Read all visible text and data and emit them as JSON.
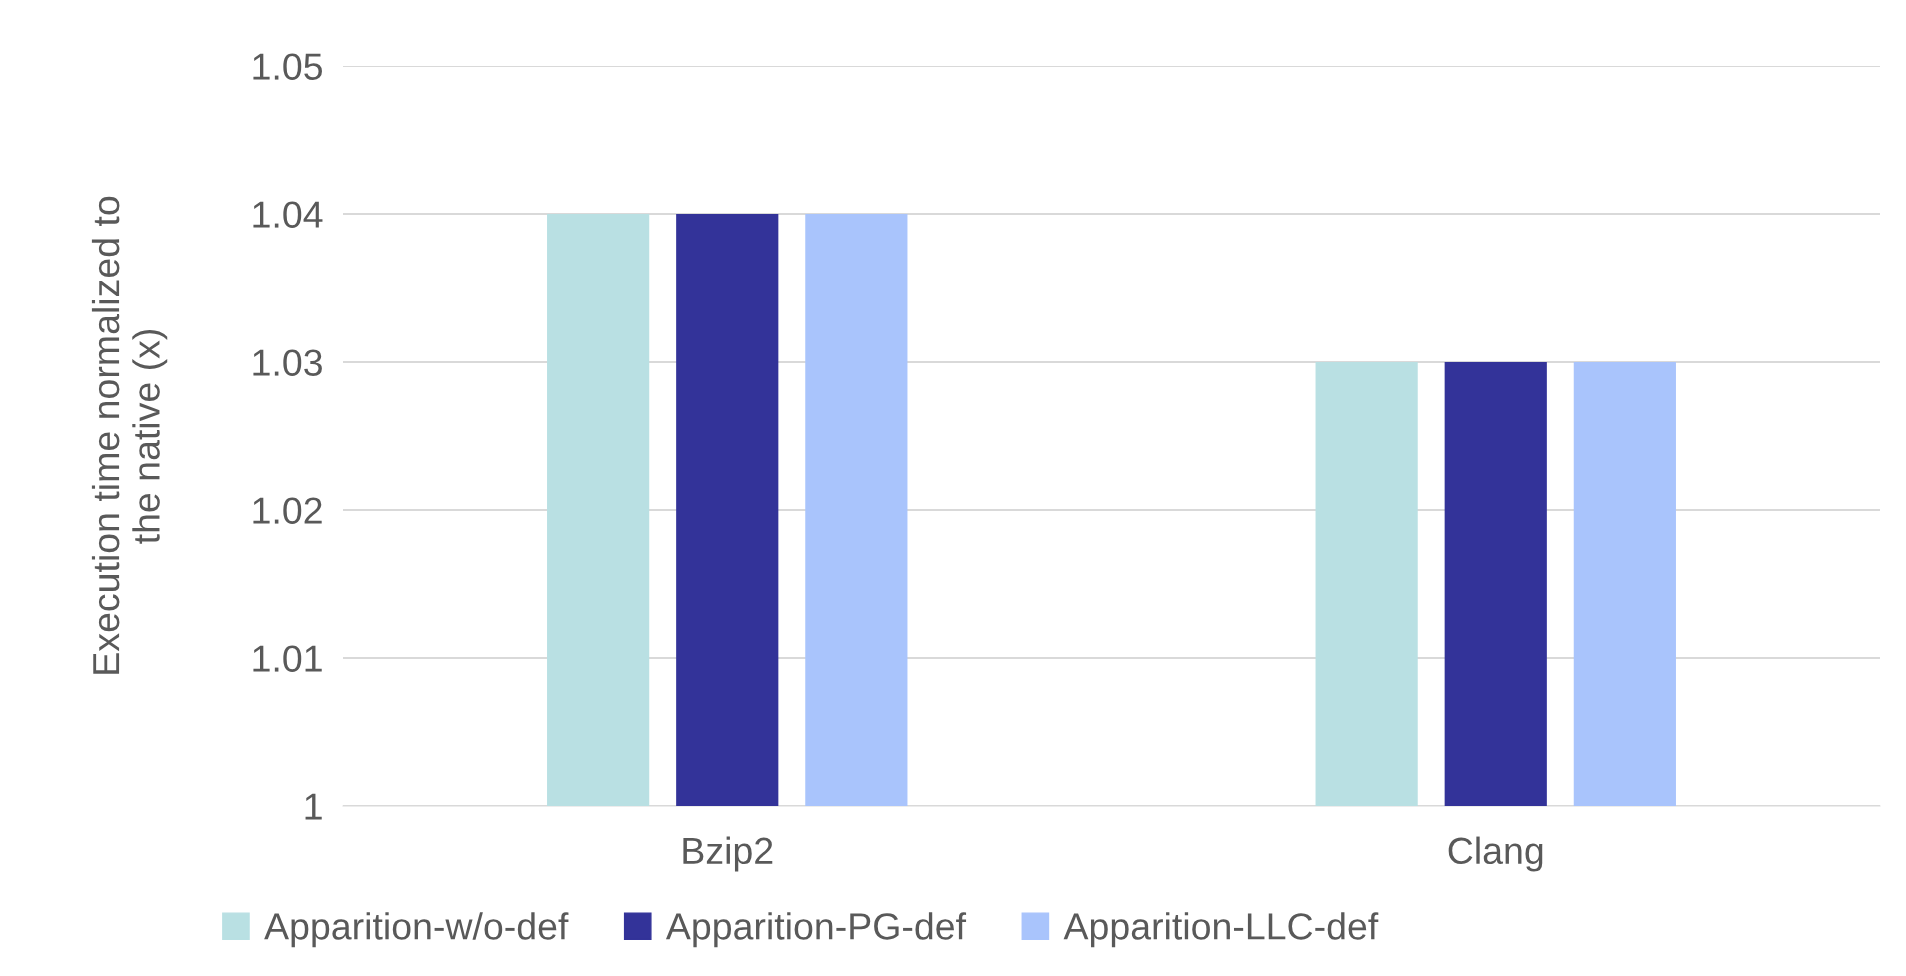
{
  "chart_data": {
    "type": "bar",
    "ylabel": "Execution time normalized to\nthe native (x)",
    "categories": [
      "Bzip2",
      "Clang"
    ],
    "series": [
      {
        "name": "Apparition-w/o-def",
        "color": "#b9e0e3",
        "values": [
          1.04,
          1.03
        ]
      },
      {
        "name": "Apparition-PG-def",
        "color": "#333399",
        "values": [
          1.04,
          1.03
        ]
      },
      {
        "name": "Apparition-LLC-def",
        "color": "#a9c4fc",
        "values": [
          1.04,
          1.03
        ]
      }
    ],
    "ylim": [
      1,
      1.05
    ],
    "yticks": [
      {
        "value": 1,
        "label": "1"
      },
      1.01,
      1.02,
      1.03,
      1.04,
      1.05
    ],
    "grid": "y",
    "legend": "bottom"
  }
}
